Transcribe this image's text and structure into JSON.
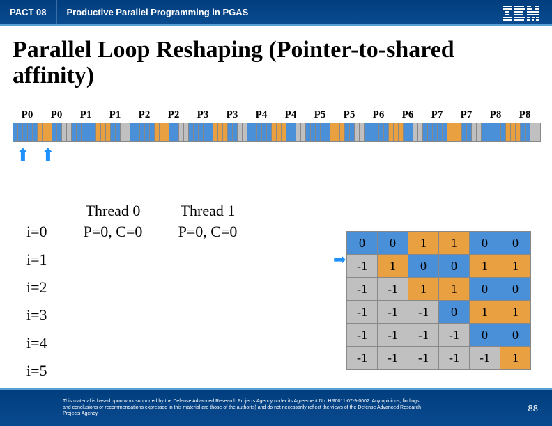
{
  "header": {
    "left": "PACT 08",
    "right": "Productive Parallel Programming in PGAS"
  },
  "title": "Parallel Loop Reshaping (Pointer-to-shared affinity)",
  "procLabels": [
    "P0",
    "P0",
    "P1",
    "P1",
    "P2",
    "P2",
    "P3",
    "P3",
    "P4",
    "P4",
    "P5",
    "P5",
    "P6",
    "P6",
    "P7",
    "P7",
    "P8",
    "P8"
  ],
  "colors": {
    "blue": "#4a90d9",
    "orange": "#e8a040",
    "gray": "#c0c0c0"
  },
  "blocks": {
    "perGroup": 6,
    "groups": 18,
    "pattern": "custom"
  },
  "threads": {
    "header0": "Thread 0",
    "header1": "Thread 1",
    "value": "P=0, C=0"
  },
  "iters": [
    "i=0",
    "i=1",
    "i=2",
    "i=3",
    "i=4",
    "i=5"
  ],
  "matrix": {
    "rows": [
      [
        0,
        0,
        1,
        1,
        0,
        0
      ],
      [
        -1,
        1,
        0,
        0,
        1,
        1
      ],
      [
        -1,
        -1,
        1,
        1,
        0,
        0
      ],
      [
        -1,
        -1,
        -1,
        0,
        1,
        1
      ],
      [
        -1,
        -1,
        -1,
        -1,
        0,
        0
      ],
      [
        -1,
        -1,
        -1,
        -1,
        -1,
        1
      ]
    ],
    "cellColors": [
      [
        "blue",
        "blue",
        "orange",
        "orange",
        "blue",
        "blue"
      ],
      [
        "gray",
        "orange",
        "blue",
        "blue",
        "orange",
        "orange"
      ],
      [
        "gray",
        "gray",
        "orange",
        "orange",
        "blue",
        "blue"
      ],
      [
        "gray",
        "gray",
        "gray",
        "blue",
        "orange",
        "orange"
      ],
      [
        "gray",
        "gray",
        "gray",
        "gray",
        "blue",
        "blue"
      ],
      [
        "gray",
        "gray",
        "gray",
        "gray",
        "gray",
        "orange"
      ]
    ]
  },
  "footer": {
    "disclaimer": "This material is based upon work supported by the Defense Advanced Research Projects Agency under its Agreement No. HR0011-07-9-0002. Any opinions, findings and conclusions or recommendations expressed in this material are those of the author(s) and do not necessarily reflect the views of the Defense Advanced Research Projects Agency.",
    "page": "88"
  }
}
